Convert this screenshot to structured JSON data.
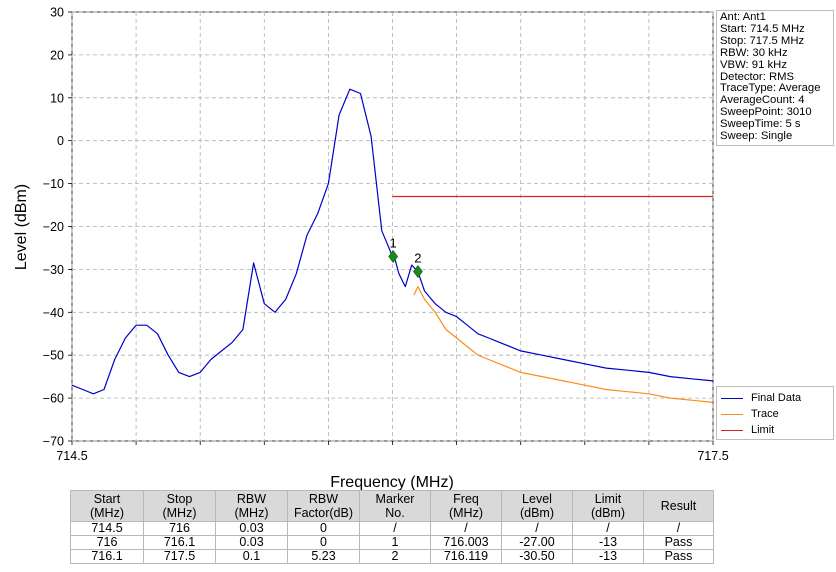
{
  "info": [
    "Ant: Ant1",
    "Start: 714.5 MHz",
    "Stop: 717.5 MHz",
    "RBW: 30 kHz",
    "VBW: 91 kHz",
    "Detector: RMS",
    "TraceType: Average",
    "AverageCount: 4",
    "SweepPoint: 3010",
    "SweepTime: 5 s",
    "Sweep: Single"
  ],
  "legend": [
    {
      "label": "Final Data",
      "color": "#0000cc"
    },
    {
      "label": "Trace",
      "color": "#ff8c1a"
    },
    {
      "label": "Limit",
      "color": "#dd2222"
    }
  ],
  "table": {
    "headers": [
      "Start\n(MHz)",
      "Stop\n(MHz)",
      "RBW\n(MHz)",
      "RBW\nFactor(dB)",
      "Marker\nNo.",
      "Freq\n(MHz)",
      "Level\n(dBm)",
      "Limit\n(dBm)",
      "Result"
    ],
    "rows": [
      [
        "714.5",
        "716",
        "0.03",
        "0",
        "/",
        "/",
        "/",
        "/",
        "/"
      ],
      [
        "716",
        "716.1",
        "0.03",
        "0",
        "1",
        "716.003",
        "-27.00",
        "-13",
        "Pass"
      ],
      [
        "716.1",
        "717.5",
        "0.1",
        "5.23",
        "2",
        "716.119",
        "-30.50",
        "-13",
        "Pass"
      ]
    ]
  },
  "chart_data": {
    "type": "line",
    "xlabel": "Frequency (MHz)",
    "ylabel": "Level (dBm)",
    "xlim": [
      714.5,
      717.5
    ],
    "ylim": [
      -70,
      30
    ],
    "x_tick_labels": [
      {
        "value": 714.5,
        "label": "714.5"
      },
      {
        "value": 717.5,
        "label": "717.5"
      }
    ],
    "x_grid": [
      714.5,
      714.8,
      715.1,
      715.4,
      715.7,
      716.0,
      716.3,
      716.6,
      716.9,
      717.2,
      717.5
    ],
    "y_ticks": [
      -70,
      -60,
      -50,
      -40,
      -30,
      -20,
      -10,
      0,
      10,
      20,
      30
    ],
    "grid": true,
    "legend_position": "bottom-right",
    "series": [
      {
        "name": "Final Data",
        "color": "#0000cc",
        "x": [
          714.5,
          714.55,
          714.6,
          714.65,
          714.7,
          714.75,
          714.8,
          714.85,
          714.9,
          714.95,
          715.0,
          715.05,
          715.1,
          715.15,
          715.2,
          715.25,
          715.3,
          715.35,
          715.4,
          715.45,
          715.5,
          715.55,
          715.6,
          715.65,
          715.7,
          715.75,
          715.8,
          715.85,
          715.9,
          715.95,
          716.0,
          716.003,
          716.03,
          716.06,
          716.09,
          716.119,
          716.15,
          716.2,
          716.25,
          716.3,
          716.35,
          716.4,
          716.45,
          716.5,
          716.55,
          716.6,
          716.7,
          716.8,
          716.9,
          717.0,
          717.1,
          717.2,
          717.3,
          717.4,
          717.5
        ],
        "y": [
          -57,
          -58,
          -59,
          -58,
          -51,
          -46,
          -43,
          -43,
          -45,
          -50,
          -54,
          -55,
          -54,
          -51,
          -49,
          -47,
          -44,
          -28.5,
          -38,
          -40,
          -37,
          -31,
          -22,
          -17,
          -10,
          6,
          12,
          11,
          1,
          -21,
          -27,
          -26,
          -31,
          -34,
          -29,
          -30.5,
          -35,
          -38,
          -40,
          -41,
          -43,
          -45,
          -46,
          -47,
          -48,
          -49,
          -50,
          -51,
          -52,
          -53,
          -53.5,
          -54,
          -55,
          -55.5,
          -56
        ]
      },
      {
        "name": "Trace",
        "color": "#ff8c1a",
        "x": [
          716.1,
          716.119,
          716.15,
          716.2,
          716.25,
          716.3,
          716.35,
          716.4,
          716.45,
          716.5,
          716.55,
          716.6,
          716.7,
          716.8,
          716.9,
          717.0,
          717.1,
          717.2,
          717.3,
          717.4,
          717.5
        ],
        "y": [
          -36,
          -34,
          -37,
          -40,
          -44,
          -46,
          -48,
          -50,
          -51,
          -52,
          -53,
          -54,
          -55,
          -56,
          -57,
          -58,
          -58.5,
          -59,
          -60,
          -60.5,
          -61
        ]
      },
      {
        "name": "Limit",
        "color": "#dd2222",
        "x": [
          716.0,
          717.5
        ],
        "y": [
          -13,
          -13
        ]
      }
    ],
    "markers": [
      {
        "label": "1",
        "x": 716.003,
        "y": -27.0
      },
      {
        "label": "2",
        "x": 716.119,
        "y": -30.5
      }
    ]
  }
}
